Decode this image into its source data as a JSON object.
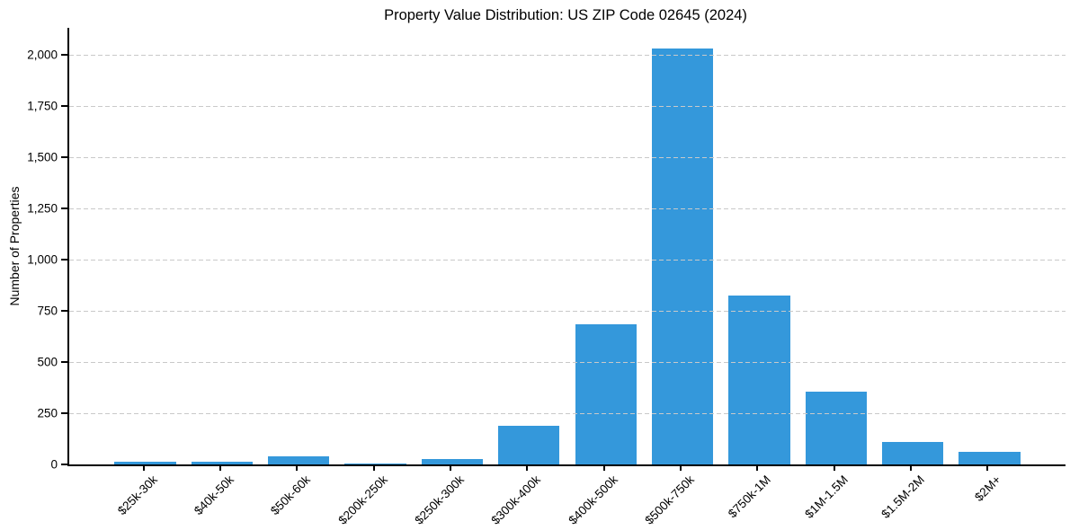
{
  "chart_data": {
    "type": "bar",
    "title": "Property Value Distribution: US ZIP Code 02645 (2024)",
    "xlabel": "",
    "ylabel": "Number of Properties",
    "categories": [
      "$25k-30k",
      "$40k-50k",
      "$50k-60k",
      "$200k-250k",
      "$250k-300k",
      "$300k-400k",
      "$400k-500k",
      "$500k-750k",
      "$750k-1M",
      "$1M-1.5M",
      "$1.5M-2M",
      "$2M+"
    ],
    "values": [
      15,
      12,
      38,
      6,
      25,
      190,
      685,
      2030,
      825,
      355,
      110,
      62
    ],
    "yticks": [
      0,
      250,
      500,
      750,
      1000,
      1250,
      1500,
      1750,
      2000
    ],
    "ytick_labels": [
      "0",
      "250",
      "500",
      "750",
      "1,000",
      "1,250",
      "1,500",
      "1,750",
      "2,000"
    ],
    "ylim": [
      0,
      2130
    ],
    "bar_color": "#3498db",
    "grid": "horizontal-dashed",
    "grid_color": "#c9c9c9",
    "legend": "none"
  }
}
